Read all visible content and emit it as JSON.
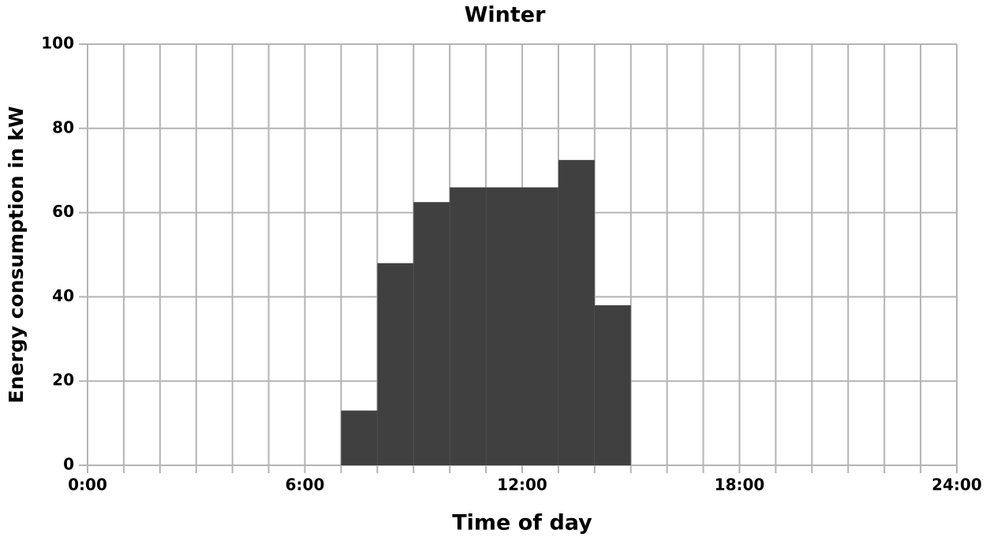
{
  "chart_data": {
    "type": "histogram",
    "title": "Winter",
    "xlabel": "Time of day",
    "ylabel": "Energy consumption in kW",
    "bins": [
      0,
      1,
      2,
      3,
      4,
      5,
      6,
      7,
      8,
      9,
      10,
      11,
      12,
      13,
      14,
      15,
      16,
      17,
      18,
      19,
      20,
      21,
      22,
      23,
      24
    ],
    "values": [
      0,
      0,
      0,
      0,
      0,
      0,
      0,
      13,
      48,
      62.5,
      66,
      66,
      66,
      72.5,
      38,
      0,
      0,
      0,
      0,
      0,
      0,
      0,
      0,
      0
    ],
    "color": "#404040",
    "xlim": [
      0,
      24
    ],
    "xticks": [
      {
        "value": 0,
        "label": "0:00"
      },
      {
        "value": 6,
        "label": "6:00"
      },
      {
        "value": 12,
        "label": "12:00"
      },
      {
        "value": 18,
        "label": "18:00"
      },
      {
        "value": 24,
        "label": "24:00"
      }
    ],
    "ylim": [
      0,
      100
    ],
    "yticks": [
      0,
      20,
      40,
      60,
      80,
      100
    ],
    "grid": true
  }
}
